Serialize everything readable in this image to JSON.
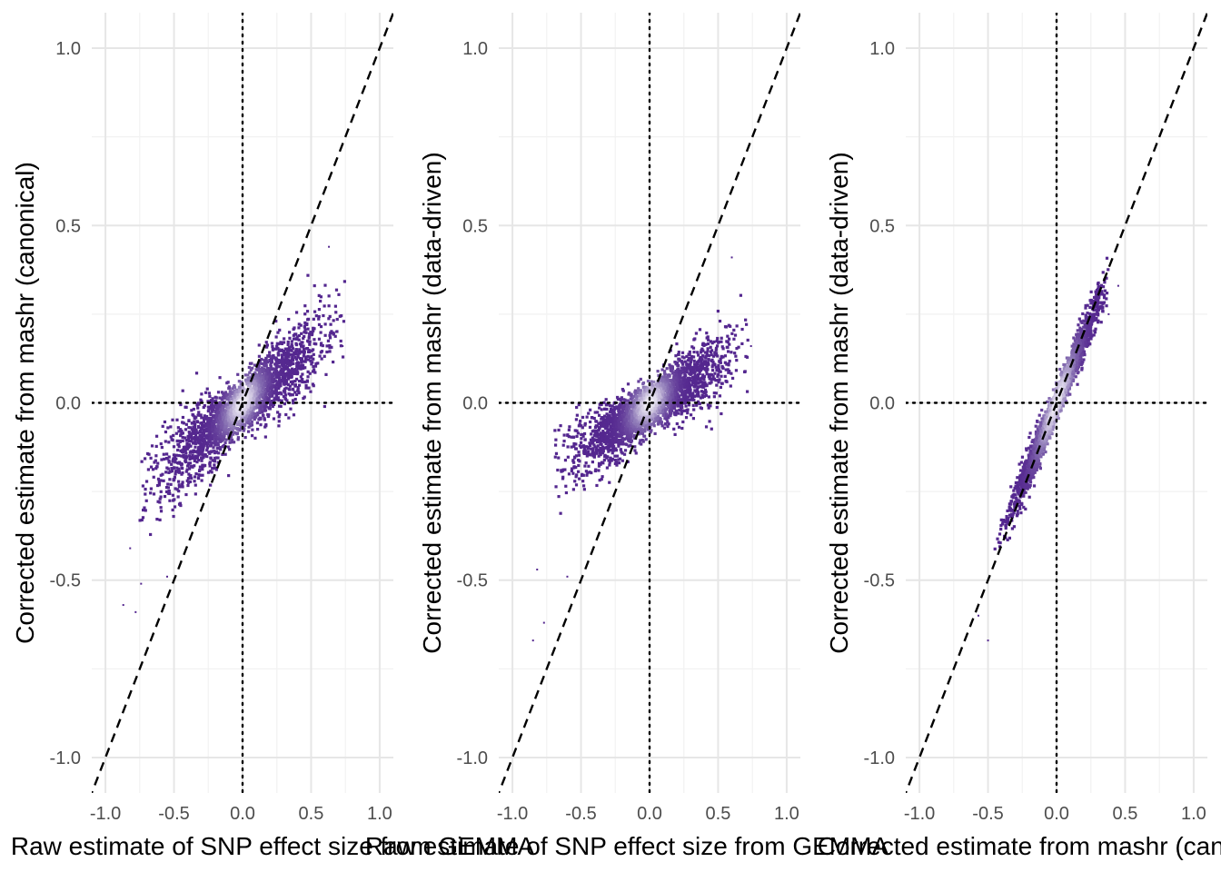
{
  "colors": {
    "grid_major": "#e6e6e6",
    "grid_minor": "#f2f2f2",
    "density_low": "#54278f",
    "density_mid": "#8c77b6",
    "density_high": "#f2f0f7",
    "reference_line": "#000000"
  },
  "chart_data": [
    {
      "type": "scatter",
      "subtype": "hexbin-density",
      "xlabel": "Raw estimate of SNP effect size from GEMMA",
      "ylabel": "Corrected estimate from mashr (canonical)",
      "xlim": [
        -1.1,
        1.1
      ],
      "ylim": [
        -1.1,
        1.1
      ],
      "xticks": [
        -1.0,
        -0.5,
        0.0,
        0.5,
        1.0
      ],
      "yticks": [
        -1.0,
        -0.5,
        0.0,
        0.5,
        1.0
      ],
      "xtick_labels": [
        "-1.0",
        "-0.5",
        "0.0",
        "0.5",
        "1.0"
      ],
      "ytick_labels": [
        "-1.0",
        "-0.5",
        "0.0",
        "0.5",
        "1.0"
      ],
      "reference_lines": {
        "diagonal": "y = x (dashed)",
        "vertical": "x = 0 (dotted)",
        "horizontal": "y = 0 (dotted)"
      },
      "cloud": {
        "slope": 0.32,
        "intercept": -0.005,
        "x_range": [
          -0.75,
          0.75
        ],
        "spread": 0.06
      },
      "outliers": [
        [
          -0.87,
          -0.57
        ],
        [
          -0.78,
          -0.59
        ],
        [
          -0.82,
          -0.41
        ],
        [
          -0.74,
          -0.51
        ],
        [
          -0.55,
          -0.49
        ],
        [
          0.63,
          0.44
        ],
        [
          0.73,
          0.16
        ],
        [
          0.68,
          0.2
        ]
      ]
    },
    {
      "type": "scatter",
      "subtype": "hexbin-density",
      "xlabel": "Raw estimate of SNP effect size from GEMMA",
      "ylabel": "Corrected estimate from mashr (data-driven)",
      "xlim": [
        -1.1,
        1.1
      ],
      "ylim": [
        -1.1,
        1.1
      ],
      "xticks": [
        -1.0,
        -0.5,
        0.0,
        0.5,
        1.0
      ],
      "yticks": [
        -1.0,
        -0.5,
        0.0,
        0.5,
        1.0
      ],
      "xtick_labels": [
        "-1.0",
        "-0.5",
        "0.0",
        "0.5",
        "1.0"
      ],
      "ytick_labels": [
        "-1.0",
        "-0.5",
        "0.0",
        "0.5",
        "1.0"
      ],
      "reference_lines": {
        "diagonal": "y = x (dashed)",
        "vertical": "x = 0 (dotted)",
        "horizontal": "y = 0 (dotted)"
      },
      "cloud": {
        "slope": 0.24,
        "intercept": -0.01,
        "x_range": [
          -0.7,
          0.72
        ],
        "spread": 0.05
      },
      "outliers": [
        [
          -0.85,
          -0.67
        ],
        [
          -0.77,
          -0.62
        ],
        [
          -0.82,
          -0.47
        ],
        [
          -0.6,
          -0.49
        ],
        [
          0.6,
          0.41
        ],
        [
          0.74,
          0.16
        ],
        [
          0.71,
          0.13
        ]
      ]
    },
    {
      "type": "scatter",
      "subtype": "hexbin-density",
      "xlabel": "Corrected estimate from mashr (canonical)",
      "ylabel": "Corrected estimate from mashr (data-driven)",
      "xlim": [
        -1.1,
        1.1
      ],
      "ylim": [
        -1.1,
        1.1
      ],
      "xticks": [
        -1.0,
        -0.5,
        0.0,
        0.5,
        1.0
      ],
      "yticks": [
        -1.0,
        -0.5,
        0.0,
        0.5,
        1.0
      ],
      "xtick_labels": [
        "-1.0",
        "-0.5",
        "0.0",
        "0.5",
        "1.0"
      ],
      "ytick_labels": [
        "-1.0",
        "-0.5",
        "0.0",
        "0.5",
        "1.0"
      ],
      "reference_lines": {
        "diagonal": "y = x (dashed)",
        "vertical": "x = 0 (dotted)",
        "horizontal": "y = 0 (dotted)"
      },
      "cloud": {
        "slope": 0.92,
        "intercept": 0.0,
        "x_range": [
          -0.45,
          0.38
        ],
        "spread": 0.035
      },
      "outliers": [
        [
          -0.57,
          -0.6
        ],
        [
          -0.5,
          -0.67
        ],
        [
          0.45,
          0.33
        ],
        [
          0.38,
          0.25
        ]
      ]
    }
  ]
}
